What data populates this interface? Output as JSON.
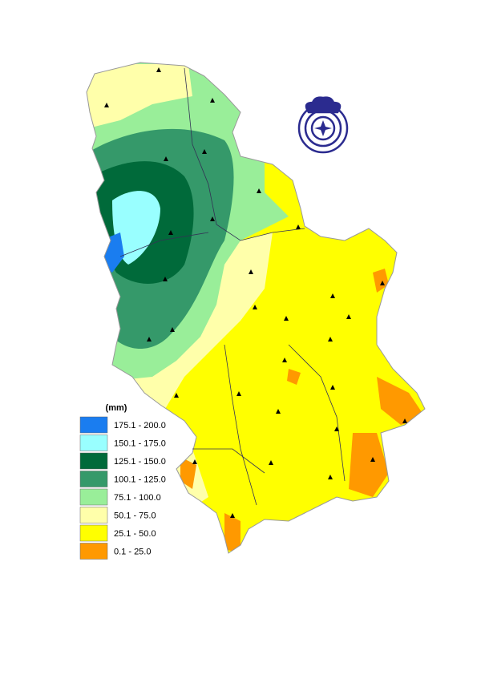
{
  "legend": {
    "title": "(mm)",
    "items": [
      {
        "label": "175.1 - 200.0",
        "color": "#1a7df0"
      },
      {
        "label": "150.1 - 175.0",
        "color": "#99ffff"
      },
      {
        "label": "125.1 - 150.0",
        "color": "#006a3a"
      },
      {
        "label": "100.1 - 125.0",
        "color": "#35996a"
      },
      {
        "label": "75.1 - 100.0",
        "color": "#99ee99"
      },
      {
        "label": "50.1 - 75.0",
        "color": "#ffffaa"
      },
      {
        "label": "25.1 - 50.0",
        "color": "#ffff00"
      },
      {
        "label": "0.1 - 25.0",
        "color": "#ff9900"
      }
    ]
  }
}
